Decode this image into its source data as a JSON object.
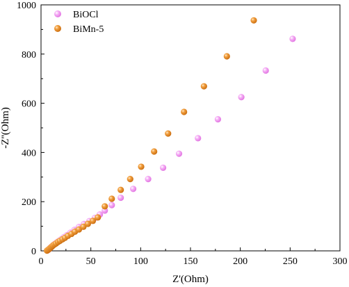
{
  "chart_data": {
    "type": "scatter",
    "xlabel": "Z'(Ohm)",
    "ylabel": "-Z''(Ohm)",
    "xlim": [
      0,
      300
    ],
    "ylim": [
      0,
      1000
    ],
    "xticks": [
      "0",
      "50",
      "100",
      "150",
      "200",
      "250",
      "300"
    ],
    "yticks": [
      "0",
      "200",
      "400",
      "600",
      "800",
      "1000"
    ],
    "legend_position": "top-left",
    "series": [
      {
        "name": "BiOCl",
        "color": "#ee82ee",
        "x": [
          6.5,
          7.5,
          8.5,
          9.5,
          10.5,
          11.5,
          12.5,
          14,
          16,
          18,
          20.5,
          23,
          26,
          29.5,
          33.5,
          38,
          43,
          48.5,
          54,
          59,
          64,
          71,
          80,
          92.5,
          107.5,
          122.5,
          138.5,
          157.5,
          177.5,
          201,
          225.5,
          252.5
        ],
        "y": [
          2,
          5,
          9,
          13,
          17,
          20,
          24,
          29,
          35,
          41,
          48,
          56,
          64,
          74,
          85,
          97,
          109,
          121,
          134,
          148,
          164,
          186,
          216,
          252,
          292,
          338,
          395,
          458,
          535,
          625,
          733,
          862
        ]
      },
      {
        "name": "BiMn-5",
        "color": "#e8871e",
        "x": [
          6,
          7,
          8,
          9,
          10,
          11,
          12,
          13.5,
          15,
          17,
          19,
          21.5,
          24,
          27,
          30.5,
          34,
          38,
          42.5,
          47,
          52,
          57,
          64,
          71,
          80,
          89.5,
          100.5,
          113.5,
          127.5,
          143.5,
          163.5,
          186.5,
          213.5
        ],
        "y": [
          1,
          4,
          7,
          11,
          14,
          18,
          22,
          26,
          30,
          36,
          41,
          47,
          53,
          61,
          69,
          78,
          87,
          98,
          110,
          122,
          136,
          181,
          212,
          248,
          292,
          342,
          404,
          477,
          565,
          669,
          791,
          937
        ]
      }
    ]
  }
}
